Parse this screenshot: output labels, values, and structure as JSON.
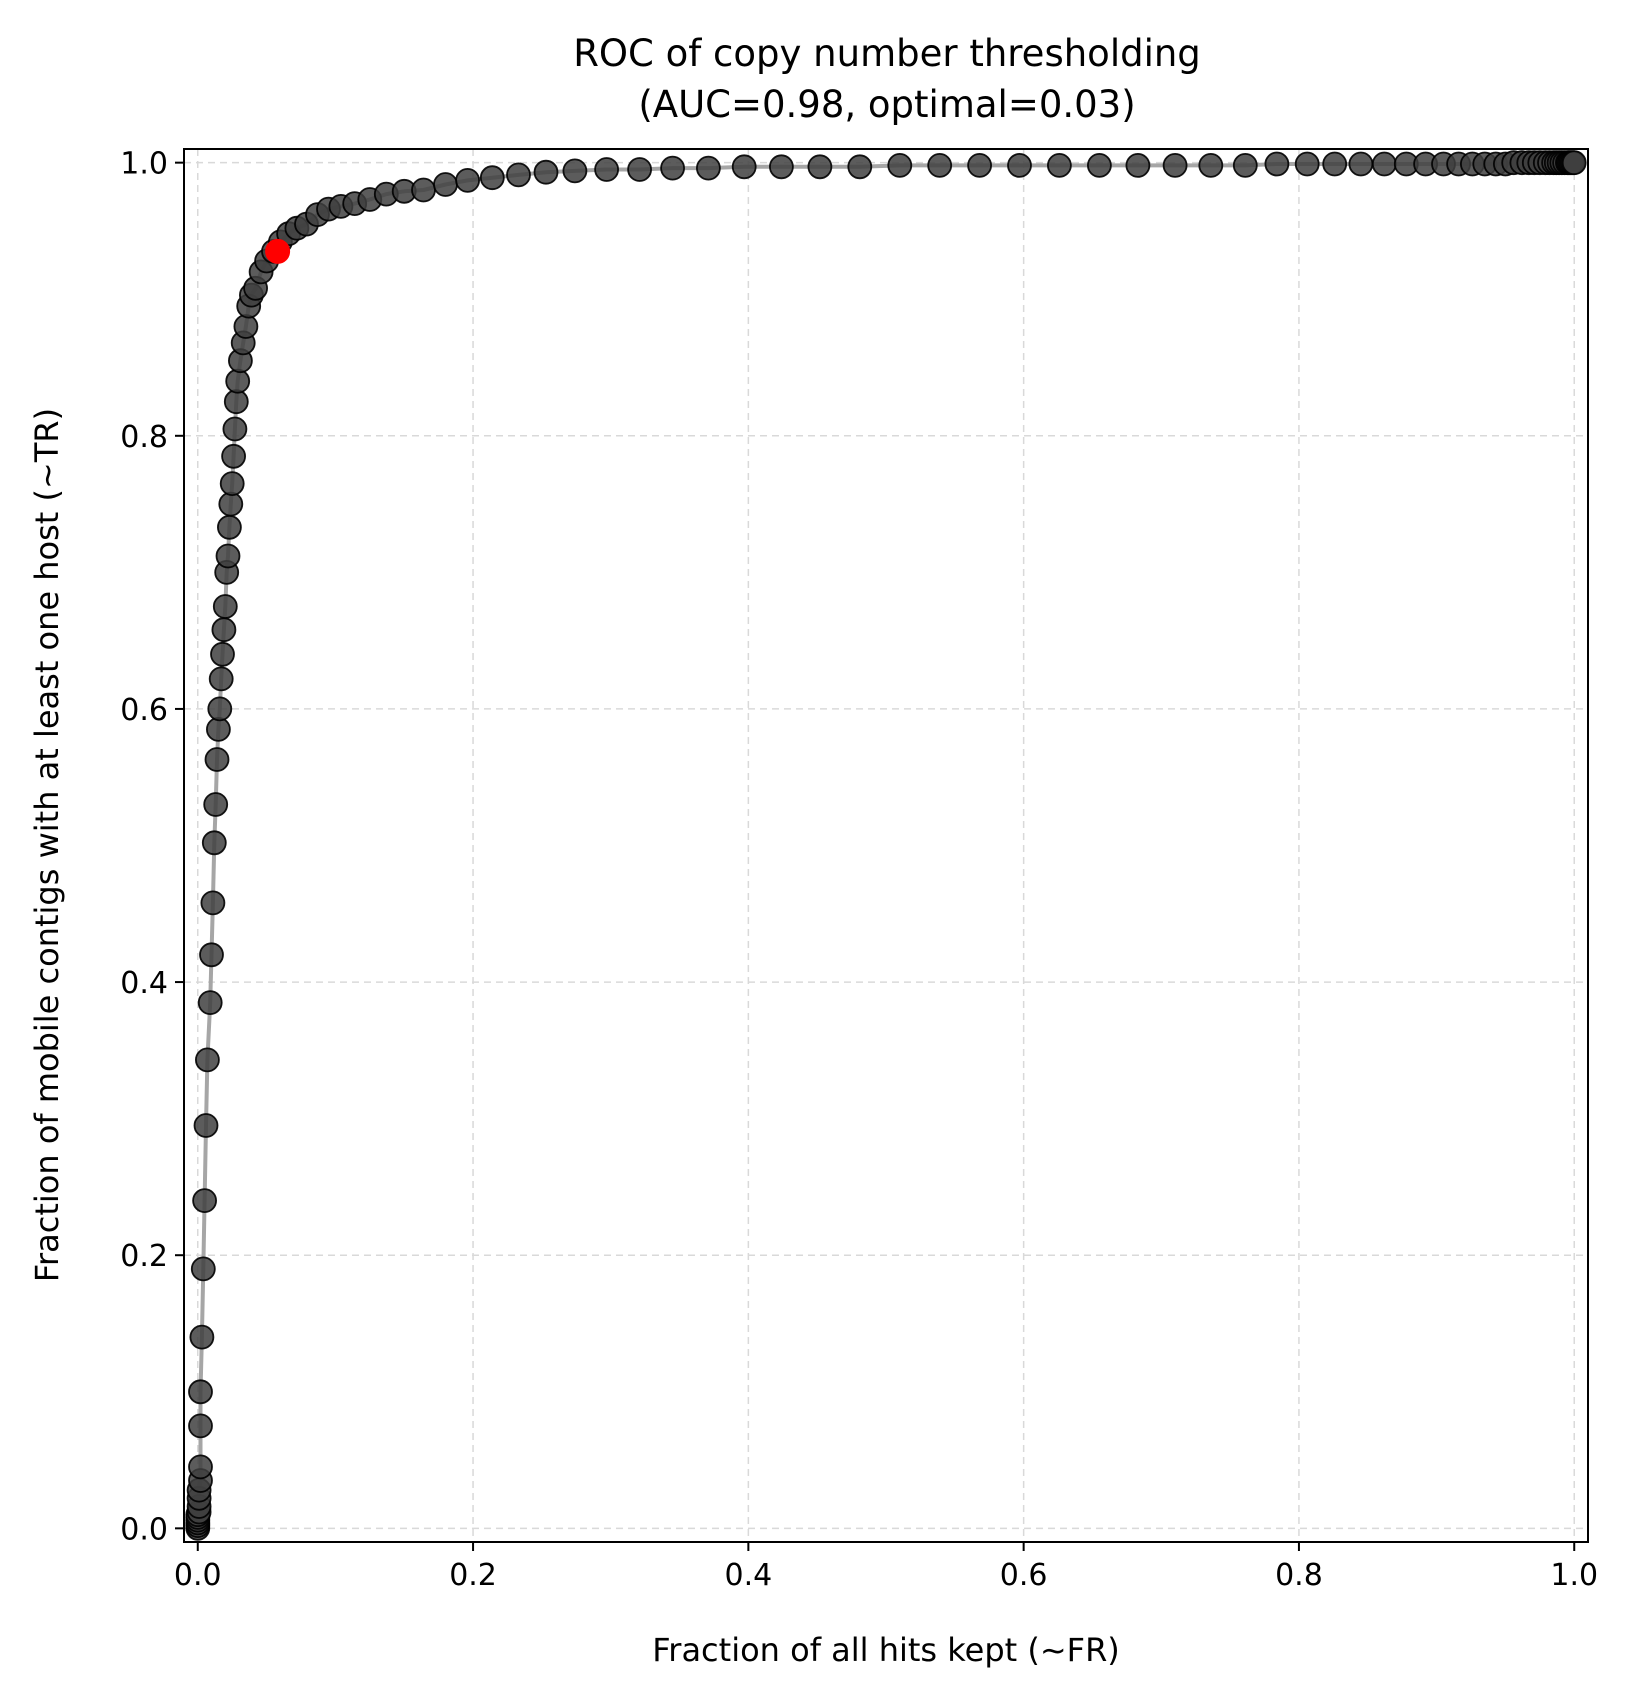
{
  "chart_data": {
    "type": "line",
    "title": [
      "ROC of copy number thresholding",
      "(AUC=0.98, optimal=0.03)"
    ],
    "xlabel": "Fraction of all hits kept (~FR)",
    "ylabel": "Fraction of mobile contigs with at least one host (~TR)",
    "xlim": [
      -0.01,
      1.01
    ],
    "ylim": [
      -0.01,
      1.01
    ],
    "xticks": [
      0.0,
      0.2,
      0.4,
      0.6,
      0.8,
      1.0
    ],
    "yticks": [
      0.0,
      0.2,
      0.4,
      0.6,
      0.8,
      1.0
    ],
    "xtick_labels": [
      "0.0",
      "0.2",
      "0.4",
      "0.6",
      "0.8",
      "1.0"
    ],
    "ytick_labels": [
      "0.0",
      "0.2",
      "0.4",
      "0.6",
      "0.8",
      "1.0"
    ],
    "grid": true,
    "colors": {
      "line": "#a6a6a6",
      "marker": "#3f3f3f",
      "marker_edge": "#000000",
      "optimal": "#ff0000",
      "grid": "#d9d9d9"
    },
    "series": [
      {
        "x": [
          0.0,
          0.0,
          0.0,
          0.0,
          0.0,
          0.0,
          0.001,
          0.001,
          0.001,
          0.001,
          0.002,
          0.002,
          0.002,
          0.002,
          0.003,
          0.004,
          0.005,
          0.006,
          0.007,
          0.009,
          0.01,
          0.011,
          0.012,
          0.013,
          0.014,
          0.015,
          0.016,
          0.017,
          0.018,
          0.019,
          0.02,
          0.021,
          0.022,
          0.023,
          0.024,
          0.025,
          0.026,
          0.027,
          0.028,
          0.029,
          0.031,
          0.033,
          0.035,
          0.037,
          0.039,
          0.042,
          0.046,
          0.05,
          0.055,
          0.06,
          0.066,
          0.072,
          0.079,
          0.087,
          0.095,
          0.104,
          0.114,
          0.125,
          0.137,
          0.15,
          0.164,
          0.18,
          0.196,
          0.214,
          0.233,
          0.253,
          0.274,
          0.297,
          0.321,
          0.345,
          0.371,
          0.397,
          0.424,
          0.452,
          0.481,
          0.51,
          0.539,
          0.568,
          0.597,
          0.626,
          0.655,
          0.683,
          0.71,
          0.736,
          0.761,
          0.784,
          0.806,
          0.826,
          0.845,
          0.862,
          0.878,
          0.892,
          0.905,
          0.916,
          0.926,
          0.935,
          0.943,
          0.95,
          0.956,
          0.962,
          0.967,
          0.971,
          0.975,
          0.979,
          0.982,
          0.985,
          0.987,
          0.989,
          0.991,
          0.993,
          0.995,
          0.996,
          0.997,
          0.998,
          0.999,
          1.0
        ],
        "y": [
          0.0,
          0.002,
          0.004,
          0.006,
          0.008,
          0.01,
          0.012,
          0.016,
          0.022,
          0.028,
          0.035,
          0.045,
          0.075,
          0.1,
          0.14,
          0.19,
          0.24,
          0.295,
          0.343,
          0.385,
          0.42,
          0.458,
          0.502,
          0.53,
          0.563,
          0.585,
          0.6,
          0.622,
          0.64,
          0.658,
          0.675,
          0.7,
          0.712,
          0.733,
          0.75,
          0.765,
          0.785,
          0.805,
          0.825,
          0.84,
          0.855,
          0.868,
          0.88,
          0.895,
          0.903,
          0.908,
          0.92,
          0.928,
          0.935,
          0.942,
          0.948,
          0.952,
          0.955,
          0.962,
          0.966,
          0.968,
          0.97,
          0.973,
          0.977,
          0.979,
          0.98,
          0.984,
          0.987,
          0.989,
          0.991,
          0.993,
          0.994,
          0.995,
          0.995,
          0.996,
          0.996,
          0.997,
          0.997,
          0.997,
          0.997,
          0.998,
          0.998,
          0.998,
          0.998,
          0.998,
          0.998,
          0.998,
          0.998,
          0.998,
          0.998,
          0.999,
          0.999,
          0.999,
          0.999,
          0.999,
          0.999,
          0.999,
          0.999,
          0.999,
          0.999,
          0.999,
          0.999,
          0.999,
          1.0,
          1.0,
          1.0,
          1.0,
          1.0,
          1.0,
          1.0,
          1.0,
          1.0,
          1.0,
          1.0,
          1.0,
          1.0,
          1.0,
          1.0,
          1.0,
          1.0,
          1.0
        ]
      }
    ],
    "optimal_point": {
      "x": 0.058,
      "y": 0.935
    }
  }
}
